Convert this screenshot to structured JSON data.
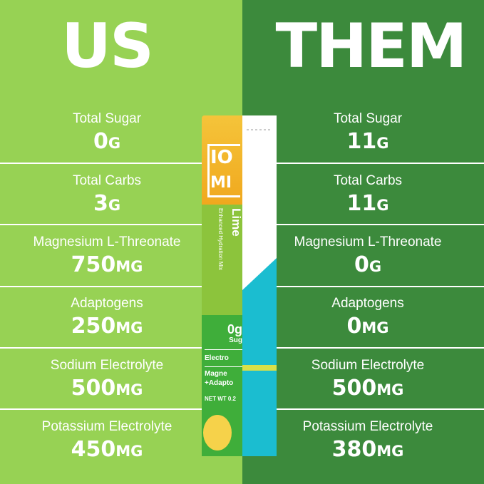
{
  "left": {
    "title": "US",
    "rows": [
      {
        "label": "Total Sugar",
        "value": "0",
        "unit": "G"
      },
      {
        "label": "Total Carbs",
        "value": "3",
        "unit": "G"
      },
      {
        "label": "Magnesium L-Threonate",
        "value": "750",
        "unit": "MG"
      },
      {
        "label": "Adaptogens",
        "value": "250",
        "unit": "MG"
      },
      {
        "label": "Sodium Electrolyte",
        "value": "500",
        "unit": "MG"
      },
      {
        "label": "Potassium Electrolyte",
        "value": "450",
        "unit": "MG"
      }
    ]
  },
  "right": {
    "title": "THEM",
    "rows": [
      {
        "label": "Total Sugar",
        "value": "11",
        "unit": "G"
      },
      {
        "label": "Total Carbs",
        "value": "11",
        "unit": "G"
      },
      {
        "label": "Magnesium L-Threonate",
        "value": "0",
        "unit": "G"
      },
      {
        "label": "Adaptogens",
        "value": "0",
        "unit": "MG"
      },
      {
        "label": "Sodium Electrolyte",
        "value": "500",
        "unit": "MG"
      },
      {
        "label": "Potassium Electrolyte",
        "value": "380",
        "unit": "MG"
      }
    ]
  },
  "packet": {
    "logo_top": "IO",
    "logo_bottom": "MI",
    "flavor": "Lime",
    "subtitle": "Enhanced Hydration Mix",
    "sugar": "0g",
    "sugar_label": "Sug",
    "line1": "Electro",
    "line2": "Magne",
    "line3": "+Adapto",
    "netwt": "NET WT 0.2"
  },
  "colors": {
    "us_bg": "#97d254",
    "them_bg": "#3c8a3c",
    "packet_teal": "#1bbdd0"
  }
}
